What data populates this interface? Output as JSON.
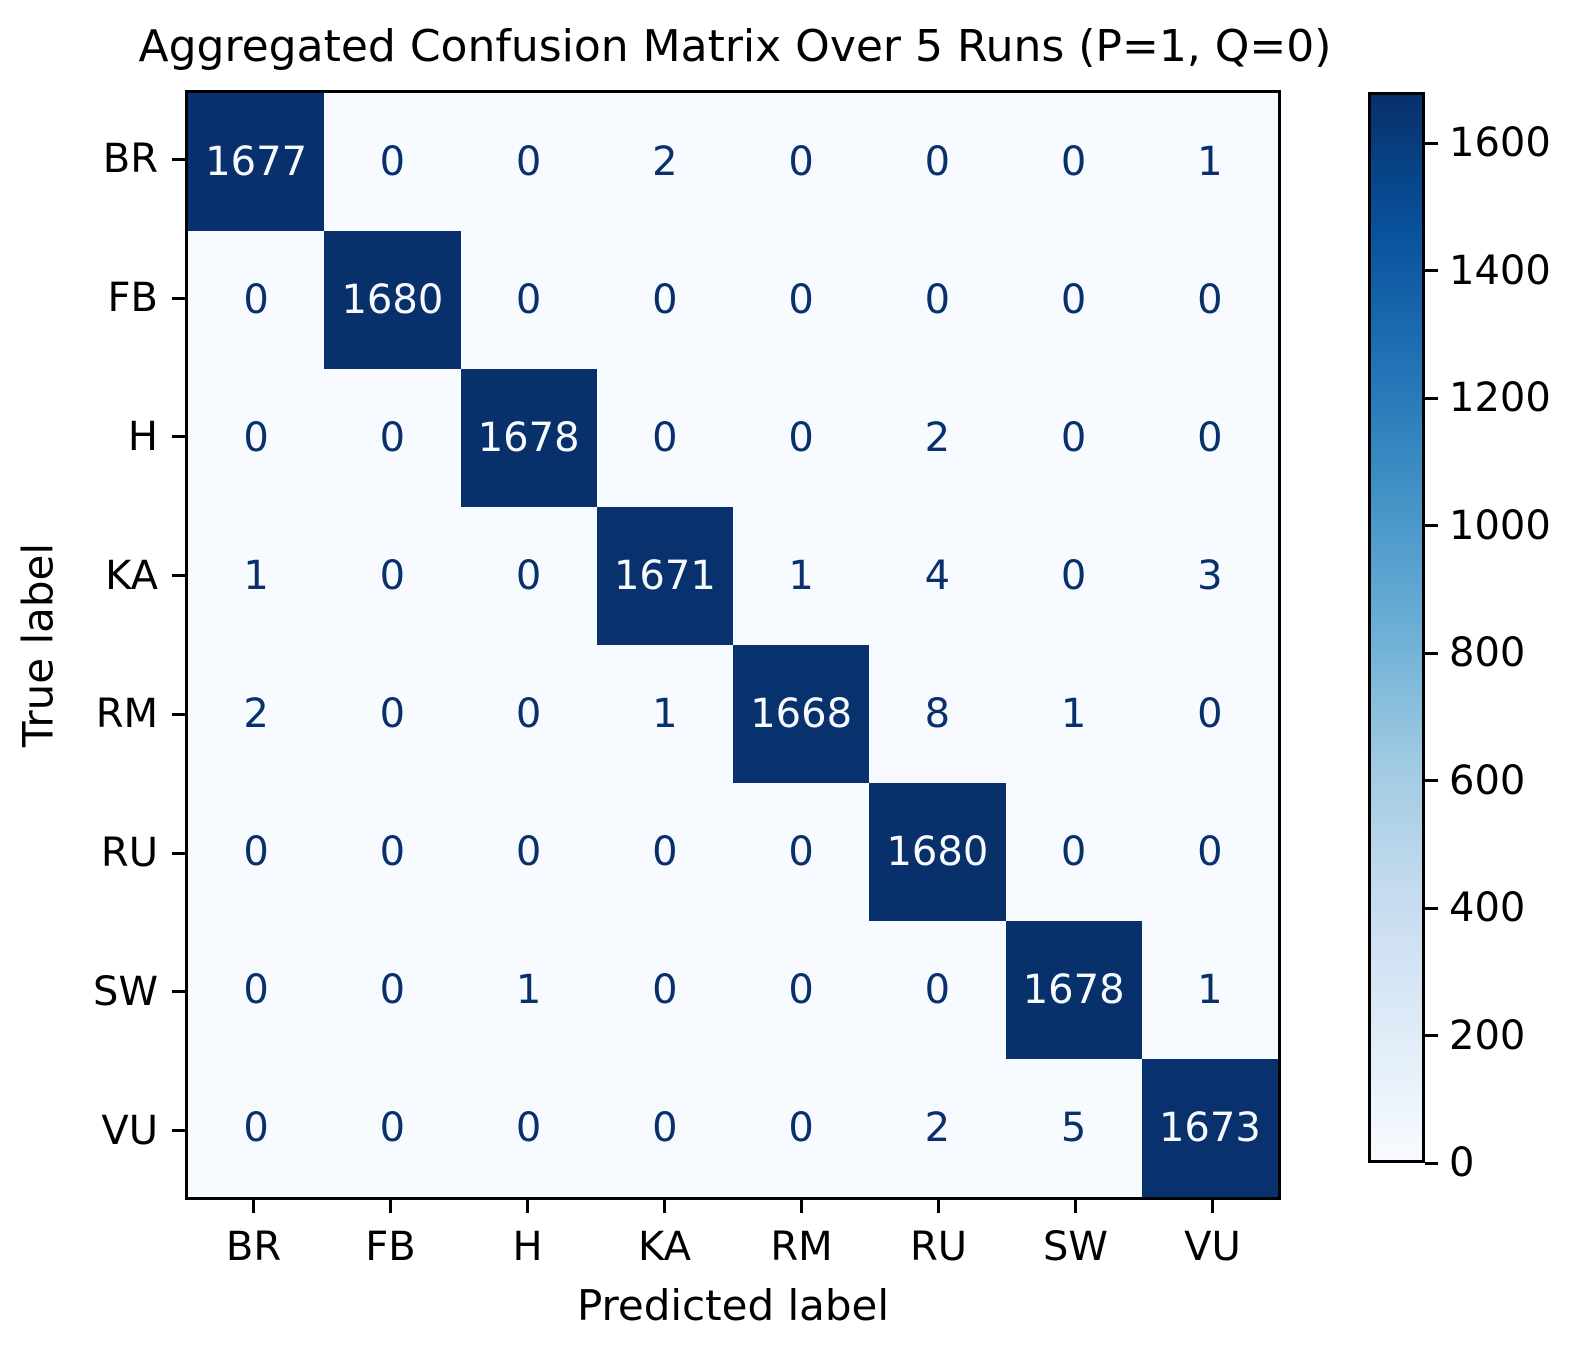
{
  "title": "Aggregated Confusion Matrix Over 5 Runs (P=1, Q=0)",
  "chart_data": {
    "type": "heatmap",
    "title": "Aggregated Confusion Matrix Over 5 Runs (P=1, Q=0)",
    "xlabel": "Predicted label",
    "ylabel": "True label",
    "categories": [
      "BR",
      "FB",
      "H",
      "KA",
      "RM",
      "RU",
      "SW",
      "VU"
    ],
    "matrix": [
      [
        1677,
        0,
        0,
        2,
        0,
        0,
        0,
        1
      ],
      [
        0,
        1680,
        0,
        0,
        0,
        0,
        0,
        0
      ],
      [
        0,
        0,
        1678,
        0,
        0,
        2,
        0,
        0
      ],
      [
        1,
        0,
        0,
        1671,
        1,
        4,
        0,
        3
      ],
      [
        2,
        0,
        0,
        1,
        1668,
        8,
        1,
        0
      ],
      [
        0,
        0,
        0,
        0,
        0,
        1680,
        0,
        0
      ],
      [
        0,
        0,
        1,
        0,
        0,
        0,
        1678,
        1
      ],
      [
        0,
        0,
        0,
        0,
        0,
        2,
        5,
        1673
      ]
    ],
    "vmin": 0,
    "vmax": 1680,
    "colormap": "Blues",
    "colorbar_ticks": [
      0,
      200,
      400,
      600,
      800,
      1000,
      1200,
      1400,
      1600
    ],
    "text_color_threshold": 840,
    "legend_position": "right",
    "grid": false,
    "colors": {
      "text_on_dark": "#f7fbff",
      "text_on_light": "#08306b",
      "spine": "#000000",
      "cmap_stops": [
        "#f7fbff",
        "#deebf7",
        "#c6dbef",
        "#9ecae1",
        "#6baed6",
        "#4292c6",
        "#2171b5",
        "#08519c",
        "#08306b"
      ]
    }
  }
}
